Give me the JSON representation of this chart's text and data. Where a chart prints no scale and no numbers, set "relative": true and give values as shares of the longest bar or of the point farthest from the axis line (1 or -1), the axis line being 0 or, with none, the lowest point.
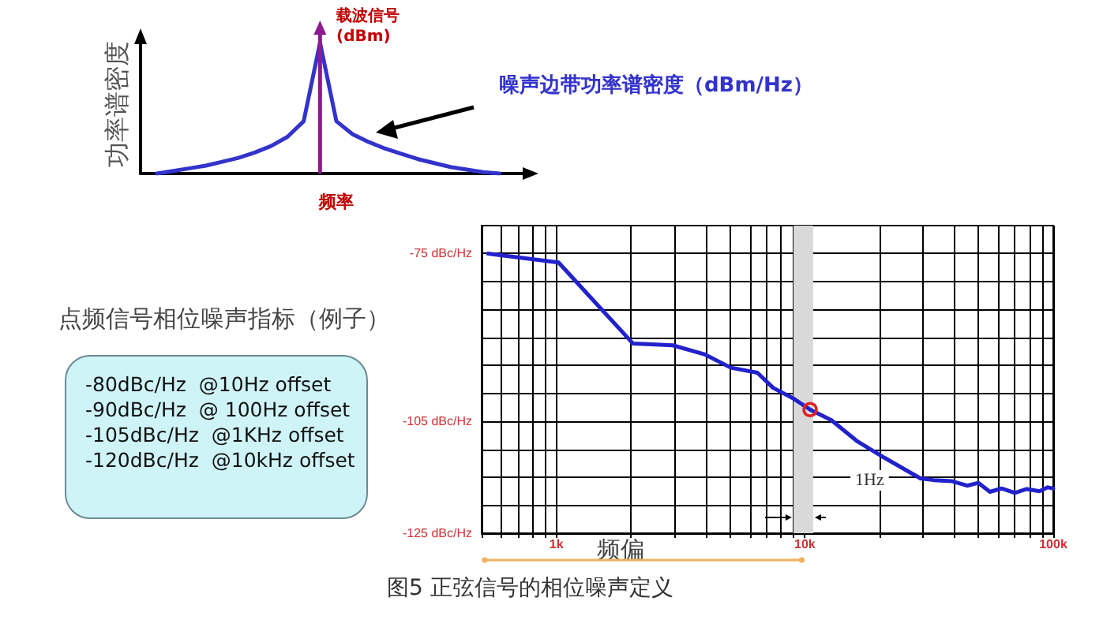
{
  "chart_data": [
    {
      "type": "line",
      "relative": true,
      "ylabel": "功率谱密度",
      "xlabel": "频率",
      "marker": "none",
      "categories": [
        null,
        null,
        null,
        null,
        null,
        null,
        null,
        null,
        null,
        null,
        null,
        null,
        null,
        null,
        null,
        null,
        null,
        null,
        null,
        null,
        null,
        null,
        null,
        null,
        null
      ],
      "series": [
        {
          "name": "噪声边带功率谱密度（dBm/Hz）",
          "color": "#3333cc",
          "values": [
            null,
            0,
            0.02,
            0.04,
            0.06,
            0.09,
            0.12,
            0.16,
            0.21,
            0.28,
            0.4,
            1,
            0.4,
            0.3,
            0.24,
            0.19,
            0.15,
            0.11,
            0.08,
            0.05,
            0.03,
            0.01,
            0,
            null,
            null
          ]
        }
      ],
      "annotations": [
        "载波信号 (dBm)"
      ]
    },
    {
      "type": "line",
      "xlabel": "频偏",
      "log": "x",
      "grid": true,
      "marker": "none",
      "xlim": [
        500,
        100000
      ],
      "ylim": [
        -125,
        -70
      ],
      "xticks": [
        {
          "value": 500,
          "label": null
        },
        {
          "value": 600,
          "label": null
        },
        {
          "value": 700,
          "label": null
        },
        {
          "value": 800,
          "label": null
        },
        {
          "value": 900,
          "label": null
        },
        {
          "value": 1000,
          "label": "1k"
        },
        {
          "value": 2000,
          "label": null
        },
        {
          "value": 3000,
          "label": null
        },
        {
          "value": 4000,
          "label": null
        },
        {
          "value": 5000,
          "label": null
        },
        {
          "value": 6000,
          "label": null
        },
        {
          "value": 7000,
          "label": null
        },
        {
          "value": 8000,
          "label": null
        },
        {
          "value": 9000,
          "label": null
        },
        {
          "value": 10000,
          "label": "10k"
        },
        {
          "value": 20000,
          "label": null
        },
        {
          "value": 30000,
          "label": null
        },
        {
          "value": 40000,
          "label": null
        },
        {
          "value": 50000,
          "label": null
        },
        {
          "value": 60000,
          "label": null
        },
        {
          "value": 70000,
          "label": null
        },
        {
          "value": 80000,
          "label": null
        },
        {
          "value": 90000,
          "label": null
        },
        {
          "value": 100000,
          "label": "100k"
        }
      ],
      "yticks": [
        {
          "value": -125,
          "label": "-125 dBc/Hz"
        },
        {
          "value": -120,
          "label": null
        },
        {
          "value": -115,
          "label": null
        },
        {
          "value": -110,
          "label": null
        },
        {
          "value": -105,
          "label": "-105 dBc/Hz"
        },
        {
          "value": -100,
          "label": null
        },
        {
          "value": -95,
          "label": null
        },
        {
          "value": -90,
          "label": null
        },
        {
          "value": -85,
          "label": null
        },
        {
          "value": -80,
          "label": null
        },
        {
          "value": -75,
          "label": "-75 dBc/Hz"
        }
      ],
      "x": [
        530,
        1020,
        2035,
        2940,
        3940,
        5035,
        6440,
        7450,
        9060,
        10500,
        12800,
        16300,
        20900,
        29200,
        33000,
        39200,
        45000,
        50000,
        55600,
        62000,
        70000,
        78200,
        88000,
        95000,
        100000
      ],
      "series": [
        {
          "color": "#2222cc",
          "values": [
            -75,
            -76.6,
            -91.1,
            -91.4,
            -93,
            -95.4,
            -96.3,
            -99,
            -101,
            -102.9,
            -104.8,
            -108.6,
            -111.5,
            -115.2,
            -115.5,
            -115.7,
            -116.5,
            -116,
            -117.6,
            -117,
            -117.8,
            -117.1,
            -117.5,
            -116.8,
            -117
          ]
        }
      ],
      "bands": [
        {
          "axis": "x",
          "from": 9000,
          "to": 10800,
          "label": "1Hz",
          "color": "#d9d9d9"
        }
      ],
      "annotations": [
        "图5 正弦信号的相位噪声定义"
      ]
    },
    {
      "type": "other",
      "title": "点频信号相位噪声指标（例子）",
      "annotations": [
        "-80dBc/Hz  @10Hz offset",
        "-90dBc/Hz  @ 100Hz offset",
        "-105dBc/Hz  @1KHz offset",
        "-120dBc/Hz  @10kHz offset"
      ]
    }
  ]
}
